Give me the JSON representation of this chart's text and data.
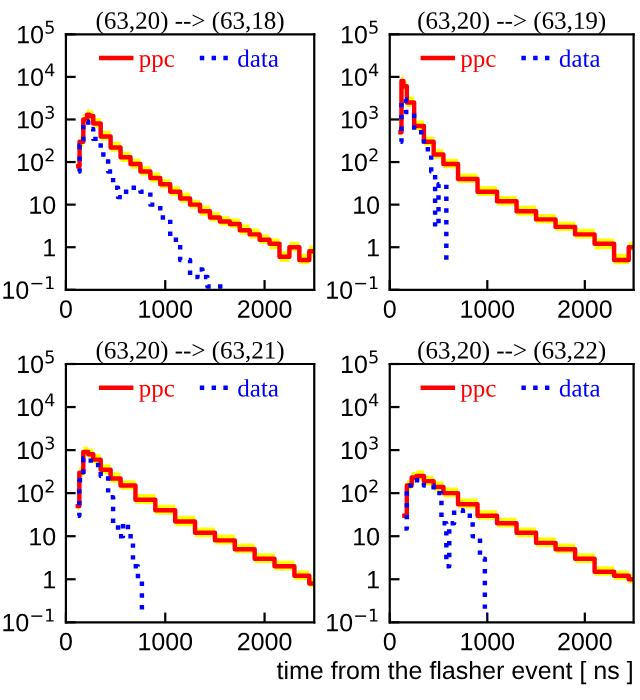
{
  "chart_data": [
    {
      "type": "step",
      "title": "(63,20) --> (63,18)",
      "xlim": [
        0,
        2500
      ],
      "xticks": [
        0,
        1000,
        2000
      ],
      "ylim": [
        0.1,
        100000
      ],
      "log": true,
      "yticks": [
        {
          "value": 0.1,
          "label": "10$^{−1}$"
        },
        1,
        10,
        {
          "value": 100,
          "label": "10$^{2}$"
        },
        {
          "value": 1000,
          "label": "10$^{3}$"
        },
        {
          "value": 10000,
          "label": "10$^{4}$"
        },
        {
          "value": 100000,
          "label": "10$^{5}$"
        }
      ],
      "legend": "top",
      "line_style": "solid",
      "series": [
        {
          "name": "ppc",
          "color": "#ff0000",
          "x": [
            125,
            150,
            200,
            225,
            250,
            300,
            400,
            500,
            600,
            700,
            800,
            900,
            1000,
            1100,
            1200,
            1300,
            1400,
            1500,
            1600,
            1700,
            1800,
            1900,
            2000,
            2100,
            2200,
            2300,
            2400,
            2500
          ],
          "values": [
            80,
            300,
            1000,
            1300,
            1200,
            800,
            400,
            220,
            130,
            90,
            60,
            42,
            30,
            20,
            14,
            10,
            7,
            5,
            4,
            3.5,
            2.5,
            2,
            1.5,
            1.2,
            0.6,
            1,
            0.5,
            0.8
          ],
          "lower": [
            60,
            230,
            800,
            1000,
            950,
            640,
            320,
            175,
            100,
            70,
            48,
            33,
            24,
            16,
            11,
            8,
            5.5,
            4,
            3.2,
            2.8,
            2,
            1.6,
            1.2,
            0.9,
            0.45,
            0.8,
            0.4,
            0.6
          ],
          "upper": [
            110,
            400,
            1350,
            1750,
            1600,
            1080,
            540,
            300,
            175,
            120,
            80,
            57,
            40,
            27,
            19,
            13,
            9.5,
            6.8,
            5.4,
            4.7,
            3.4,
            2.7,
            2,
            1.6,
            0.8,
            1.35,
            0.7,
            1.1
          ]
        },
        {
          "name": "data",
          "color": "#0000ff",
          "line_style": "dotted",
          "x": [
            125,
            150,
            200,
            250,
            300,
            400,
            450,
            500,
            550,
            600,
            700,
            800,
            900,
            1000,
            1100,
            1200,
            1300,
            1350,
            1400,
            1450,
            1650
          ],
          "values": [
            60,
            250,
            900,
            600,
            350,
            150,
            60,
            25,
            15,
            20,
            25,
            20,
            10,
            5,
            1.5,
            0.5,
            0.2,
            0.3,
            0.2,
            0.12,
            0.12
          ]
        }
      ]
    },
    {
      "type": "step",
      "title": "(63,20) --> (63,19)",
      "xlim": [
        0,
        2500
      ],
      "xticks": [
        0,
        1000,
        2000
      ],
      "ylim": [
        0.1,
        100000
      ],
      "log": true,
      "yticks": [
        {
          "value": 0.1,
          "label": "10$^{−1}$"
        },
        1,
        10,
        {
          "value": 100,
          "label": "10$^{2}$"
        },
        {
          "value": 1000,
          "label": "10$^{3}$"
        },
        {
          "value": 10000,
          "label": "10$^{4}$"
        },
        {
          "value": 100000,
          "label": "10$^{5}$"
        }
      ],
      "legend": "top",
      "line_style": "solid",
      "series": [
        {
          "name": "ppc",
          "color": "#ff0000",
          "x": [
            110,
            130,
            150,
            200,
            300,
            400,
            500,
            600,
            800,
            1000,
            1200,
            1400,
            1600,
            1800,
            2000,
            2200,
            2400,
            2500
          ],
          "values": [
            500,
            8000,
            6000,
            2500,
            700,
            300,
            150,
            90,
            40,
            20,
            12,
            7,
            4.5,
            3,
            2,
            1.2,
            0.5,
            1
          ],
          "lower": [
            400,
            6400,
            4800,
            2000,
            560,
            240,
            120,
            72,
            32,
            16,
            9.5,
            5.5,
            3.6,
            2.4,
            1.6,
            0.9,
            0.4,
            0.8
          ],
          "upper": [
            680,
            10800,
            8100,
            3400,
            950,
            400,
            200,
            120,
            54,
            27,
            16,
            9.5,
            6,
            4,
            2.7,
            1.6,
            0.7,
            1.35
          ]
        },
        {
          "name": "data",
          "color": "#0000ff",
          "line_style": "dotted",
          "x": [
            110,
            130,
            200,
            300,
            400,
            450,
            480,
            520,
            560,
            600
          ],
          "values": [
            300,
            3000,
            1500,
            500,
            200,
            60,
            3,
            30,
            30,
            0.5
          ]
        }
      ]
    },
    {
      "type": "step",
      "title": "(63,20) --> (63,21)",
      "xlim": [
        0,
        2500
      ],
      "xticks": [
        0,
        1000,
        2000
      ],
      "ylim": [
        0.1,
        100000
      ],
      "log": true,
      "yticks": [
        {
          "value": 0.1,
          "label": "10$^{−1}$"
        },
        1,
        10,
        {
          "value": 100,
          "label": "10$^{2}$"
        },
        {
          "value": 1000,
          "label": "10$^{3}$"
        },
        {
          "value": 10000,
          "label": "10$^{4}$"
        },
        {
          "value": 100000,
          "label": "10$^{5}$"
        }
      ],
      "legend": "top",
      "line_style": "solid",
      "series": [
        {
          "name": "ppc",
          "color": "#ff0000",
          "x": [
            120,
            150,
            200,
            250,
            300,
            400,
            500,
            600,
            800,
            1000,
            1200,
            1400,
            1600,
            1800,
            2000,
            2200,
            2400,
            2500
          ],
          "values": [
            50,
            300,
            900,
            800,
            600,
            350,
            220,
            150,
            70,
            40,
            22,
            12,
            8,
            5,
            3,
            2,
            1.2,
            0.8
          ],
          "lower": [
            40,
            240,
            720,
            640,
            480,
            280,
            175,
            120,
            56,
            32,
            17,
            9.5,
            6.4,
            4,
            2.4,
            1.6,
            0.95,
            0.65
          ],
          "upper": [
            68,
            400,
            1200,
            1080,
            810,
            470,
            300,
            200,
            95,
            54,
            30,
            16,
            11,
            6.8,
            4,
            2.7,
            1.6,
            1.1
          ]
        },
        {
          "name": "data",
          "color": "#0000ff",
          "line_style": "dotted",
          "x": [
            120,
            150,
            200,
            300,
            400,
            450,
            500,
            550,
            600,
            650,
            700,
            750,
            780
          ],
          "values": [
            30,
            200,
            650,
            450,
            250,
            80,
            20,
            10,
            20,
            10,
            2,
            1,
            0.15
          ]
        }
      ]
    },
    {
      "type": "step",
      "title": "(63,20) --> (63,22)",
      "xlabel": "time from the flasher event [ ns ]",
      "xlim": [
        0,
        2500
      ],
      "xticks": [
        0,
        1000,
        2000
      ],
      "ylim": [
        0.1,
        100000
      ],
      "log": true,
      "yticks": [
        {
          "value": 0.1,
          "label": "10$^{−1}$"
        },
        1,
        10,
        {
          "value": 100,
          "label": "10$^{2}$"
        },
        {
          "value": 1000,
          "label": "10$^{3}$"
        },
        {
          "value": 10000,
          "label": "10$^{4}$"
        },
        {
          "value": 100000,
          "label": "10$^{5}$"
        }
      ],
      "legend": "top",
      "line_style": "solid",
      "series": [
        {
          "name": "ppc",
          "color": "#ff0000",
          "x": [
            150,
            200,
            250,
            300,
            400,
            500,
            600,
            800,
            1000,
            1200,
            1400,
            1600,
            1800,
            2000,
            2200,
            2400,
            2500
          ],
          "values": [
            30,
            150,
            230,
            250,
            190,
            140,
            100,
            55,
            30,
            20,
            12,
            7,
            5,
            3,
            1.5,
            1.2,
            1
          ],
          "lower": [
            24,
            120,
            185,
            200,
            150,
            110,
            80,
            44,
            24,
            16,
            9.5,
            5.6,
            4,
            2.4,
            1.2,
            0.95,
            0.8
          ],
          "upper": [
            40,
            200,
            310,
            340,
            255,
            190,
            135,
            75,
            40,
            27,
            16,
            9.5,
            6.8,
            4,
            2,
            1.6,
            1.35
          ]
        },
        {
          "name": "data",
          "color": "#0000ff",
          "line_style": "dotted",
          "x": [
            150,
            200,
            300,
            400,
            500,
            560,
            600,
            620,
            700,
            800,
            900,
            950,
            1000
          ],
          "values": [
            15,
            150,
            200,
            150,
            100,
            20,
            2,
            20,
            40,
            30,
            10,
            3,
            0.15
          ]
        }
      ]
    }
  ]
}
